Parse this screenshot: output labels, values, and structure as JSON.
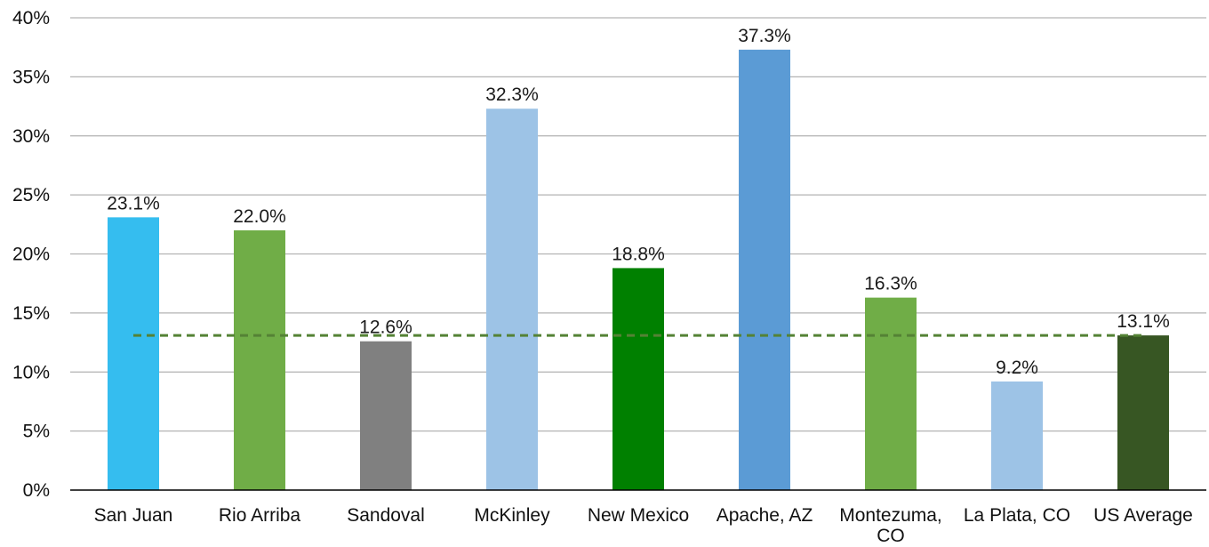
{
  "chart_data": {
    "type": "bar",
    "categories": [
      "San Juan",
      "Rio Arriba",
      "Sandoval",
      "McKinley",
      "New Mexico",
      "Apache, AZ",
      "Montezuma, CO",
      "La Plata, CO",
      "US Average"
    ],
    "category_lines": [
      [
        "San Juan"
      ],
      [
        "Rio Arriba"
      ],
      [
        "Sandoval"
      ],
      [
        "McKinley"
      ],
      [
        "New Mexico"
      ],
      [
        "Apache, AZ"
      ],
      [
        "Montezuma,",
        "CO"
      ],
      [
        "La Plata, CO"
      ],
      [
        "US Average"
      ]
    ],
    "values": [
      23.1,
      22.0,
      12.6,
      32.3,
      18.8,
      37.3,
      16.3,
      9.2,
      13.1
    ],
    "data_labels": [
      "23.1%",
      "22.0%",
      "12.6%",
      "32.3%",
      "18.8%",
      "37.3%",
      "16.3%",
      "9.2%",
      "13.1%"
    ],
    "bar_colors": [
      "#35bdef",
      "#70ad47",
      "#808080",
      "#9dc3e6",
      "#008000",
      "#5b9bd5",
      "#70ad47",
      "#9dc3e6",
      "#375623"
    ],
    "reference_line": {
      "value": 13.1,
      "style": "dashed",
      "color": "#548235"
    },
    "ylim": [
      0,
      40
    ],
    "y_ticks": [
      0,
      5,
      10,
      15,
      20,
      25,
      30,
      35,
      40
    ],
    "y_tick_labels": [
      "0%",
      "5%",
      "10%",
      "15%",
      "20%",
      "25%",
      "30%",
      "35%",
      "40%"
    ],
    "grid": true,
    "grid_color": "#b3b3b3",
    "axis_color": "#000000",
    "legend": "none",
    "title": "",
    "xlabel": "",
    "ylabel": ""
  }
}
